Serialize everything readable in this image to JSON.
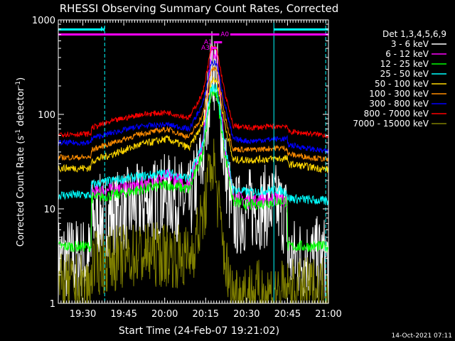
{
  "chart_data": {
    "type": "line",
    "title": "RHESSI Observing Summary Count Rates, Corrected",
    "xlabel": "Start Time (24-Feb-07 19:21:02)",
    "ylabel_main": "Corrected Count Rate (s",
    "ylabel_sup1": "-1",
    "ylabel_mid": " detector",
    "ylabel_sup2": "-1",
    "ylabel_end": ")",
    "y_scale": "log",
    "ylim": [
      1,
      1000
    ],
    "xlim_minutes": [
      0,
      99
    ],
    "x_ticks": [
      {
        "label": "19:30",
        "minute": 9
      },
      {
        "label": "19:45",
        "minute": 24
      },
      {
        "label": "20:00",
        "minute": 39
      },
      {
        "label": "20:15",
        "minute": 54
      },
      {
        "label": "20:30",
        "minute": 69
      },
      {
        "label": "20:45",
        "minute": 84
      },
      {
        "label": "21:00",
        "minute": 99
      }
    ],
    "y_ticks": [
      {
        "label": "1",
        "value": 1
      },
      {
        "label": "10",
        "value": 10
      },
      {
        "label": "100",
        "value": 100
      },
      {
        "label": "1000",
        "value": 1000
      }
    ],
    "legend_title": "Det 1,3,4,5,6,9",
    "legend_position": "right",
    "series": [
      {
        "name": "3 - 6 keV",
        "color": "#ffffff",
        "noise": 0.45,
        "points": [
          [
            0,
            3
          ],
          [
            12,
            3
          ],
          [
            12,
            8
          ],
          [
            20,
            9
          ],
          [
            30,
            11
          ],
          [
            40,
            14
          ],
          [
            48,
            11
          ],
          [
            53,
            35
          ],
          [
            56,
            300
          ],
          [
            58,
            300
          ],
          [
            61,
            30
          ],
          [
            64,
            8
          ],
          [
            70,
            10
          ],
          [
            80,
            11
          ],
          [
            84,
            8
          ],
          [
            84,
            3
          ],
          [
            99,
            3
          ]
        ]
      },
      {
        "name": "6 - 12 keV",
        "color": "#ff00ff",
        "noise": 0.08,
        "points": [
          [
            12,
            15
          ],
          [
            20,
            16
          ],
          [
            30,
            18
          ],
          [
            40,
            22
          ],
          [
            48,
            18
          ],
          [
            53,
            50
          ],
          [
            56,
            450
          ],
          [
            58,
            430
          ],
          [
            61,
            45
          ],
          [
            64,
            14
          ],
          [
            70,
            12
          ],
          [
            80,
            13
          ],
          [
            84,
            12
          ]
        ]
      },
      {
        "name": "12 - 25 keV",
        "color": "#00ff00",
        "noise": 0.06,
        "points": [
          [
            0,
            4
          ],
          [
            12,
            4
          ],
          [
            12,
            13
          ],
          [
            20,
            14
          ],
          [
            30,
            16
          ],
          [
            40,
            18
          ],
          [
            48,
            16
          ],
          [
            53,
            40
          ],
          [
            56,
            170
          ],
          [
            58,
            170
          ],
          [
            61,
            40
          ],
          [
            64,
            12
          ],
          [
            70,
            11
          ],
          [
            80,
            12
          ],
          [
            84,
            12
          ],
          [
            84,
            4
          ],
          [
            99,
            4
          ]
        ]
      },
      {
        "name": "25 - 50 keV",
        "color": "#00ffff",
        "noise": 0.05,
        "points": [
          [
            0,
            14
          ],
          [
            12,
            14
          ],
          [
            12,
            18
          ],
          [
            20,
            20
          ],
          [
            30,
            22
          ],
          [
            40,
            24
          ],
          [
            48,
            21
          ],
          [
            53,
            50
          ],
          [
            56,
            190
          ],
          [
            58,
            190
          ],
          [
            61,
            50
          ],
          [
            64,
            16
          ],
          [
            70,
            15
          ],
          [
            80,
            16
          ],
          [
            84,
            15
          ],
          [
            84,
            13
          ],
          [
            99,
            12
          ]
        ]
      },
      {
        "name": "50 - 100 keV",
        "color": "#ffd700",
        "noise": 0.04,
        "points": [
          [
            0,
            27
          ],
          [
            12,
            27
          ],
          [
            12,
            32
          ],
          [
            20,
            38
          ],
          [
            30,
            48
          ],
          [
            40,
            55
          ],
          [
            48,
            44
          ],
          [
            53,
            80
          ],
          [
            56,
            230
          ],
          [
            58,
            230
          ],
          [
            61,
            80
          ],
          [
            64,
            33
          ],
          [
            70,
            33
          ],
          [
            80,
            34
          ],
          [
            84,
            34
          ],
          [
            84,
            30
          ],
          [
            99,
            26
          ]
        ]
      },
      {
        "name": "100 - 300 keV",
        "color": "#ff8c00",
        "noise": 0.03,
        "points": [
          [
            0,
            35
          ],
          [
            12,
            35
          ],
          [
            12,
            42
          ],
          [
            20,
            50
          ],
          [
            30,
            62
          ],
          [
            40,
            70
          ],
          [
            48,
            57
          ],
          [
            53,
            100
          ],
          [
            56,
            300
          ],
          [
            58,
            300
          ],
          [
            61,
            100
          ],
          [
            64,
            43
          ],
          [
            70,
            42
          ],
          [
            80,
            44
          ],
          [
            84,
            44
          ],
          [
            84,
            38
          ],
          [
            99,
            33
          ]
        ]
      },
      {
        "name": "300 - 800 keV",
        "color": "#0000ff",
        "noise": 0.03,
        "points": [
          [
            0,
            50
          ],
          [
            12,
            50
          ],
          [
            12,
            56
          ],
          [
            20,
            64
          ],
          [
            30,
            75
          ],
          [
            40,
            78
          ],
          [
            48,
            70
          ],
          [
            53,
            130
          ],
          [
            56,
            350
          ],
          [
            58,
            350
          ],
          [
            61,
            130
          ],
          [
            64,
            55
          ],
          [
            70,
            52
          ],
          [
            80,
            55
          ],
          [
            84,
            55
          ],
          [
            84,
            48
          ],
          [
            99,
            40
          ]
        ]
      },
      {
        "name": "800 - 7000 keV",
        "color": "#ff0000",
        "noise": 0.03,
        "points": [
          [
            0,
            62
          ],
          [
            12,
            62
          ],
          [
            12,
            72
          ],
          [
            20,
            85
          ],
          [
            30,
            100
          ],
          [
            40,
            105
          ],
          [
            48,
            92
          ],
          [
            53,
            170
          ],
          [
            56,
            500
          ],
          [
            58,
            500
          ],
          [
            61,
            170
          ],
          [
            64,
            76
          ],
          [
            70,
            72
          ],
          [
            80,
            75
          ],
          [
            84,
            76
          ],
          [
            84,
            66
          ],
          [
            99,
            60
          ]
        ]
      },
      {
        "name": "7000 - 15000 keV",
        "color": "#808000",
        "noise": 0.35,
        "points": [
          [
            0,
            1.5
          ],
          [
            12,
            1.5
          ],
          [
            12,
            2.5
          ],
          [
            20,
            3
          ],
          [
            30,
            3.3
          ],
          [
            40,
            3.3
          ],
          [
            48,
            3
          ],
          [
            53,
            8
          ],
          [
            56,
            30
          ],
          [
            57,
            30
          ],
          [
            60,
            5
          ],
          [
            63,
            1.3
          ],
          [
            84,
            1.3
          ],
          [
            99,
            1.5
          ]
        ]
      }
    ],
    "attenuator_bars": [
      {
        "label": "A0",
        "from": 0,
        "to": 99,
        "color": "#ff00ff",
        "gap": [
          59,
          63
        ]
      },
      {
        "label": "A1",
        "from": 57,
        "to": 60,
        "color": "#ff00ff"
      },
      {
        "label": "A3",
        "from": 56,
        "to": 58,
        "color": "#ff00ff"
      }
    ],
    "night_bars": [
      {
        "label": "N",
        "from": 0,
        "to": 17,
        "color": "#00ffff"
      },
      {
        "label": "",
        "from": 79,
        "to": 99,
        "color": "#00ffff"
      }
    ],
    "vertical_lines": [
      {
        "minute": 17,
        "color": "#00ffff",
        "style": "dashed"
      },
      {
        "minute": 79,
        "color": "#00ffff",
        "style": "solid"
      },
      {
        "minute": 98,
        "color": "#00ffff",
        "style": "dashed"
      }
    ]
  },
  "footer": {
    "timestamp": "14-Oct-2021 07:11"
  }
}
